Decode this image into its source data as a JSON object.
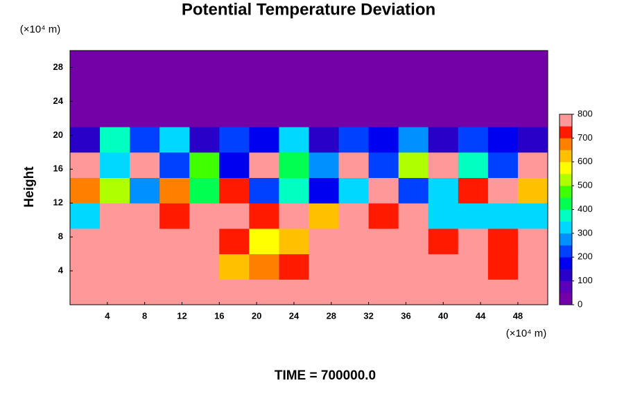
{
  "chart_data": {
    "type": "heatmap",
    "title": "Potential Temperature Deviation",
    "y_unit_label": "(×10⁴ m)",
    "x_unit_label": "(×10⁴ m)",
    "ylabel": "Height",
    "footer": "TIME = 700000.0",
    "xlim": [
      0,
      51.2
    ],
    "ylim": [
      0,
      30
    ],
    "xticks": [
      4,
      8,
      12,
      16,
      20,
      24,
      28,
      32,
      36,
      40,
      44,
      48
    ],
    "yticks": [
      4,
      8,
      12,
      16,
      20,
      24,
      28
    ],
    "x": [
      1.6,
      4.8,
      8,
      11.2,
      14.4,
      17.6,
      20.8,
      24,
      27.2,
      30.4,
      33.6,
      36.8,
      40,
      43.2,
      46.4,
      49.6
    ],
    "y": [
      1.5,
      4.5,
      7.5,
      10.5,
      13.5,
      16.5,
      19.5,
      22.5,
      25.5,
      28.5
    ],
    "z": [
      [
        790,
        790,
        790,
        790,
        790,
        790,
        790,
        790,
        790,
        790,
        790,
        790,
        790,
        760,
        790,
        790
      ],
      [
        760,
        790,
        790,
        790,
        790,
        620,
        680,
        720,
        790,
        790,
        790,
        790,
        790,
        790,
        700,
        790
      ],
      [
        790,
        790,
        790,
        790,
        790,
        700,
        580,
        640,
        760,
        790,
        790,
        790,
        740,
        790,
        720,
        790
      ],
      [
        300,
        790,
        790,
        740,
        790,
        790,
        720,
        760,
        600,
        790,
        700,
        790,
        300,
        300,
        300,
        300
      ],
      [
        650,
        500,
        250,
        650,
        400,
        700,
        200,
        350,
        150,
        300,
        790,
        200,
        300,
        700,
        790,
        600
      ],
      [
        790,
        300,
        790,
        200,
        450,
        150,
        790,
        400,
        250,
        790,
        200,
        500,
        790,
        350,
        200,
        790
      ],
      [
        100,
        350,
        200,
        300,
        100,
        200,
        150,
        300,
        100,
        200,
        150,
        250,
        100,
        200,
        150,
        100
      ],
      [
        0,
        0,
        0,
        0,
        0,
        0,
        0,
        0,
        0,
        0,
        0,
        0,
        0,
        0,
        0,
        0
      ],
      [
        0,
        0,
        0,
        0,
        0,
        0,
        0,
        0,
        0,
        0,
        0,
        0,
        0,
        0,
        0,
        0
      ],
      [
        0,
        0,
        0,
        0,
        0,
        0,
        0,
        0,
        0,
        0,
        0,
        0,
        0,
        0,
        0,
        0
      ]
    ],
    "levels": [
      0,
      50,
      100,
      150,
      200,
      250,
      300,
      350,
      400,
      450,
      500,
      550,
      600,
      650,
      700,
      750,
      800
    ],
    "colors": [
      "#7400a8",
      "#5a00b8",
      "#2800c8",
      "#0000f0",
      "#0040ff",
      "#0090ff",
      "#00d8ff",
      "#00ffc0",
      "#00ff50",
      "#40ff00",
      "#b0ff00",
      "#ffff00",
      "#ffc000",
      "#ff8000",
      "#ff1a00",
      "#ff9999"
    ],
    "cticks": [
      0,
      100,
      200,
      300,
      400,
      500,
      600,
      700,
      800
    ]
  }
}
